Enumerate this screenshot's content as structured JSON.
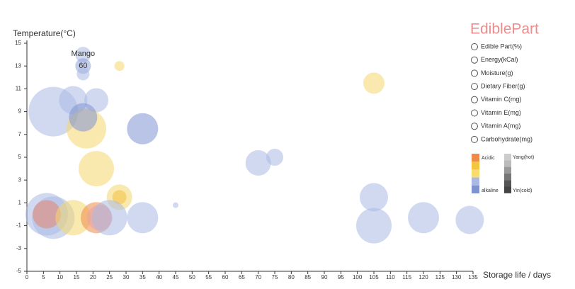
{
  "chart_data": {
    "type": "scatter",
    "title": "EdiblePart",
    "x_label": "Storage life / days",
    "y_label": "Temperature(°C)",
    "xlim": [
      0,
      135
    ],
    "xticks": [
      0,
      5,
      10,
      15,
      20,
      25,
      30,
      35,
      40,
      45,
      50,
      55,
      60,
      65,
      70,
      75,
      80,
      85,
      90,
      95,
      100,
      105,
      110,
      115,
      120,
      125,
      130,
      135
    ],
    "ylim": [
      -5,
      15
    ],
    "yticks": [
      -5,
      -3,
      -1,
      1,
      3,
      5,
      7,
      9,
      11,
      13,
      15
    ],
    "x": [
      17,
      17,
      17,
      28,
      105,
      14,
      21,
      8,
      18,
      17,
      35,
      21,
      70,
      75,
      28,
      28,
      45,
      6,
      8,
      6,
      14,
      21,
      22,
      25,
      35,
      105,
      105,
      120,
      134
    ],
    "values": [
      14,
      13,
      12.3,
      13,
      11.5,
      10,
      10,
      9,
      7.5,
      8.5,
      7.5,
      4,
      4.5,
      5,
      1.5,
      1.5,
      0.8,
      0,
      -0.3,
      0,
      -0.3,
      -0.3,
      -0.3,
      -0.3,
      -0.3,
      1.5,
      -1,
      -0.3,
      -0.5
    ],
    "sizes": [
      11,
      11,
      9,
      7,
      15,
      20,
      17,
      35,
      28,
      20,
      22,
      25,
      18,
      12,
      18,
      10,
      4,
      30,
      30,
      20,
      25,
      22,
      18,
      25,
      22,
      20,
      25,
      22,
      20
    ],
    "colors": [
      "#a9b9e3",
      "#8fa3db",
      "#a9b9e3",
      "#f5d76e",
      "#f5d76e",
      "#a9b9e3",
      "#a9b9e3",
      "#a9b9e3",
      "#f5d76e",
      "#7f93d1",
      "#7f93d1",
      "#f5d76e",
      "#a9b9e3",
      "#a9b9e3",
      "#f5d76e",
      "#f0c040",
      "#a9b9e3",
      "#a9b9e3",
      "#a9b9e3",
      "#e8836b",
      "#f5d76e",
      "#ee8a4a",
      "#e8a0a8",
      "#a9b9e3",
      "#a9b9e3",
      "#a9b9e3",
      "#a9b9e3",
      "#a9b9e3",
      "#a9b9e3"
    ],
    "legend": [
      "Edible Part(%)",
      "Energy(kCal)",
      "Moisture(g)",
      "Dietary Fiber(g)",
      "Vitamin C(mg)",
      "Vitamin E(mg)",
      "Vitamin A(mg)",
      "Carbohydrate(mg)"
    ],
    "visual_map": {
      "acidic": "Acidic",
      "alkaline": "alkaline",
      "hot": "Yang(hot)",
      "cold": "Yin(cold)",
      "acid_colors": [
        "#ee8a4a",
        "#f5c542",
        "#f7dc6f",
        "#a9b9e3",
        "#7f93d1"
      ],
      "temp_colors": [
        "#cccccc",
        "#bbbbbb",
        "#999999",
        "#777777",
        "#555555",
        "#444444"
      ]
    },
    "tooltip": {
      "name": "Mango",
      "value": 60,
      "index": 1
    }
  }
}
